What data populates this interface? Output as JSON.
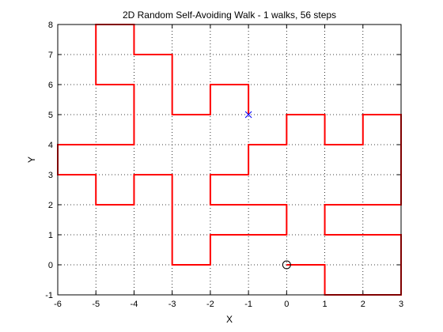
{
  "chart_data": {
    "type": "line",
    "title": "2D Random Self-Avoiding Walk - 1 walks, 56 steps",
    "xlabel": "X",
    "ylabel": "Y",
    "xlim": [
      -6,
      3
    ],
    "ylim": [
      -1,
      8
    ],
    "xticks": [
      -6,
      -5,
      -4,
      -3,
      -2,
      -1,
      0,
      1,
      2,
      3
    ],
    "yticks": [
      -1,
      0,
      1,
      2,
      3,
      4,
      5,
      6,
      7,
      8
    ],
    "grid": "dotted",
    "series": [
      {
        "color": "#ff0000",
        "x": [
          0,
          1,
          1,
          3,
          3,
          1,
          1,
          3,
          3,
          2,
          2,
          1,
          1,
          0,
          0,
          -1,
          -1,
          -2,
          -2,
          0,
          0,
          -2,
          -2,
          -3,
          -3,
          -4,
          -4,
          -5,
          -5,
          -6,
          -6,
          -4,
          -4,
          -5,
          -5,
          -4,
          -4,
          -3,
          -3,
          -2,
          -2,
          -1,
          -1
        ],
        "y": [
          0,
          0,
          -1,
          -1,
          1,
          1,
          2,
          2,
          5,
          5,
          4,
          4,
          5,
          5,
          4,
          4,
          3,
          3,
          2,
          2,
          1,
          1,
          0,
          0,
          3,
          3,
          2,
          2,
          3,
          3,
          4,
          4,
          6,
          6,
          8,
          8,
          7,
          7,
          5,
          5,
          6,
          6,
          5
        ]
      }
    ],
    "start_marker": {
      "x": 0,
      "y": 0,
      "shape": "circle",
      "color": "#000000"
    },
    "end_marker": {
      "x": -1,
      "y": 5,
      "shape": "x",
      "color": "#0000ff"
    }
  }
}
